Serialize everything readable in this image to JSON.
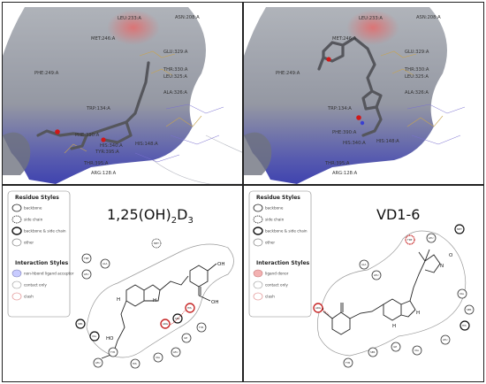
{
  "panels": {
    "top_left": {
      "residue_labels": [
        "ASN:208:A",
        "LEU:233:A",
        "MET:246:A",
        "GLU:329:A",
        "THR:330:A",
        "LEU:325:A",
        "PHE:249:A",
        "ALA:326:A",
        "TRP:134:A",
        "PHE:390:A",
        "HIS:340:A",
        "HIS:148:A",
        "THR:395:A",
        "ARG:128:A",
        "TYR:395:A"
      ]
    },
    "top_right": {
      "residue_labels": [
        "ASN:208:A",
        "LEU:233:A",
        "MET:246:A",
        "GLU:329:A",
        "THR:330:A",
        "LEU:325:A",
        "PHE:249:A",
        "ALA:326:A",
        "TRP:134:A",
        "PHE:390:A",
        "HIS:340:A",
        "HIS:148:A",
        "THR:395:A",
        "ARG:128:A"
      ]
    },
    "bottom_left": {
      "title_main": "1,25(OH)",
      "title_sub1": "2",
      "title_mid": "D",
      "title_sub2": "3",
      "residue_styles_title": "Residue Styles",
      "residue_styles": [
        "backbone",
        "side chain",
        "backbone & side chain",
        "other"
      ],
      "interaction_styles_title": "Interaction Styles",
      "interaction_styles": [
        "non-hbond ligand acceptor",
        "contact only",
        "clash"
      ],
      "atom_labels": [
        "OH",
        "H",
        "H",
        "HO",
        "OH"
      ]
    },
    "bottom_right": {
      "title": "VD1-6",
      "residue_styles_title": "Residue Styles",
      "residue_styles": [
        "backbone",
        "side chain",
        "backbone & side chain",
        "other"
      ],
      "interaction_styles_title": "Interaction Styles",
      "interaction_styles": [
        "ligand donor",
        "contact only",
        "clash"
      ],
      "atom_labels": [
        "HO",
        "H",
        "H",
        "N",
        "O"
      ]
    }
  },
  "colors": {
    "surface_gray": "#8a8e96",
    "surface_red": "#e07070",
    "surface_blue": "#3b3fb0",
    "ligand_gray": "#5a5a60",
    "oxygen_red": "#d01818",
    "clash_red": "#c62828",
    "acceptor_blue": "#c8cbff",
    "donor_pink": "#f3b1b1"
  }
}
